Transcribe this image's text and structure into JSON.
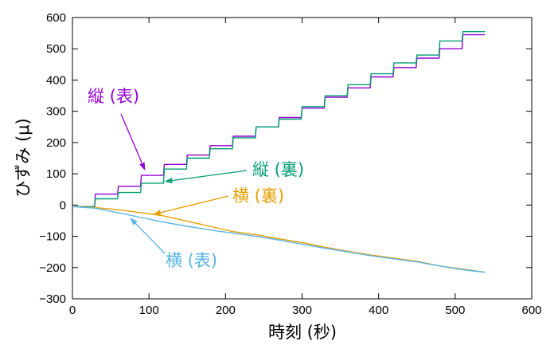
{
  "chart_data": {
    "type": "line",
    "xlabel": "時刻 (秒)",
    "ylabel": "ひずみ (μ)",
    "xlim": [
      0,
      600
    ],
    "ylim": [
      -300,
      600
    ],
    "xticks": [
      0,
      100,
      200,
      300,
      400,
      500,
      600
    ],
    "yticks": [
      -300,
      -200,
      -100,
      0,
      100,
      200,
      300,
      400,
      500,
      600
    ],
    "grid": false,
    "legend": "none",
    "series": [
      {
        "name": "縦 (表)",
        "color": "#9400d3",
        "x": [
          0,
          29,
          30,
          59,
          60,
          89,
          90,
          119,
          120,
          149,
          150,
          179,
          180,
          209,
          210,
          239,
          240,
          269,
          270,
          299,
          300,
          329,
          330,
          359,
          360,
          389,
          390,
          419,
          420,
          449,
          450,
          479,
          480,
          509,
          510,
          539
        ],
        "y": [
          -5,
          -5,
          35,
          35,
          60,
          60,
          95,
          95,
          130,
          130,
          160,
          160,
          190,
          190,
          220,
          220,
          250,
          250,
          280,
          280,
          310,
          310,
          345,
          345,
          375,
          375,
          410,
          410,
          440,
          440,
          470,
          470,
          500,
          500,
          545,
          545
        ]
      },
      {
        "name": "縦 (裏)",
        "color": "#009e73",
        "x": [
          0,
          29,
          30,
          59,
          60,
          89,
          90,
          119,
          120,
          149,
          150,
          179,
          180,
          209,
          210,
          239,
          240,
          269,
          270,
          299,
          300,
          329,
          330,
          359,
          360,
          389,
          390,
          419,
          420,
          449,
          450,
          479,
          480,
          509,
          510,
          539
        ],
        "y": [
          -5,
          -5,
          20,
          20,
          40,
          40,
          70,
          70,
          115,
          115,
          150,
          150,
          180,
          180,
          215,
          215,
          250,
          250,
          275,
          275,
          315,
          315,
          350,
          350,
          385,
          385,
          420,
          420,
          455,
          455,
          480,
          480,
          525,
          525,
          555,
          555
        ]
      },
      {
        "name": "横 (裏)",
        "color": "#e69f00",
        "x": [
          0,
          30,
          60,
          90,
          120,
          150,
          180,
          210,
          240,
          270,
          300,
          330,
          360,
          390,
          420,
          450,
          480,
          510,
          539
        ],
        "y": [
          -5,
          -8,
          -15,
          -25,
          -35,
          -52,
          -68,
          -85,
          -95,
          -108,
          -120,
          -135,
          -148,
          -160,
          -170,
          -180,
          -195,
          -205,
          -215
        ]
      },
      {
        "name": "横 (表)",
        "color": "#56b4e9",
        "x": [
          0,
          30,
          60,
          90,
          120,
          150,
          180,
          210,
          240,
          270,
          300,
          330,
          360,
          390,
          420,
          450,
          480,
          510,
          539
        ],
        "y": [
          -5,
          -10,
          -25,
          -40,
          -55,
          -68,
          -80,
          -90,
          -100,
          -112,
          -125,
          -138,
          -150,
          -162,
          -172,
          -182,
          -195,
          -207,
          -215
        ]
      }
    ],
    "annotations": [
      {
        "text": "縦 (表)",
        "color": "#9400d3",
        "point": [
          95,
          110
        ]
      },
      {
        "text": "縦 (裏)",
        "color": "#009e73",
        "point": [
          120,
          75
        ]
      },
      {
        "text": "横 (裏)",
        "color": "#e69f00",
        "point": [
          105,
          -30
        ]
      },
      {
        "text": "横 (表)",
        "color": "#56b4e9",
        "point": [
          75,
          -40
        ]
      }
    ]
  }
}
